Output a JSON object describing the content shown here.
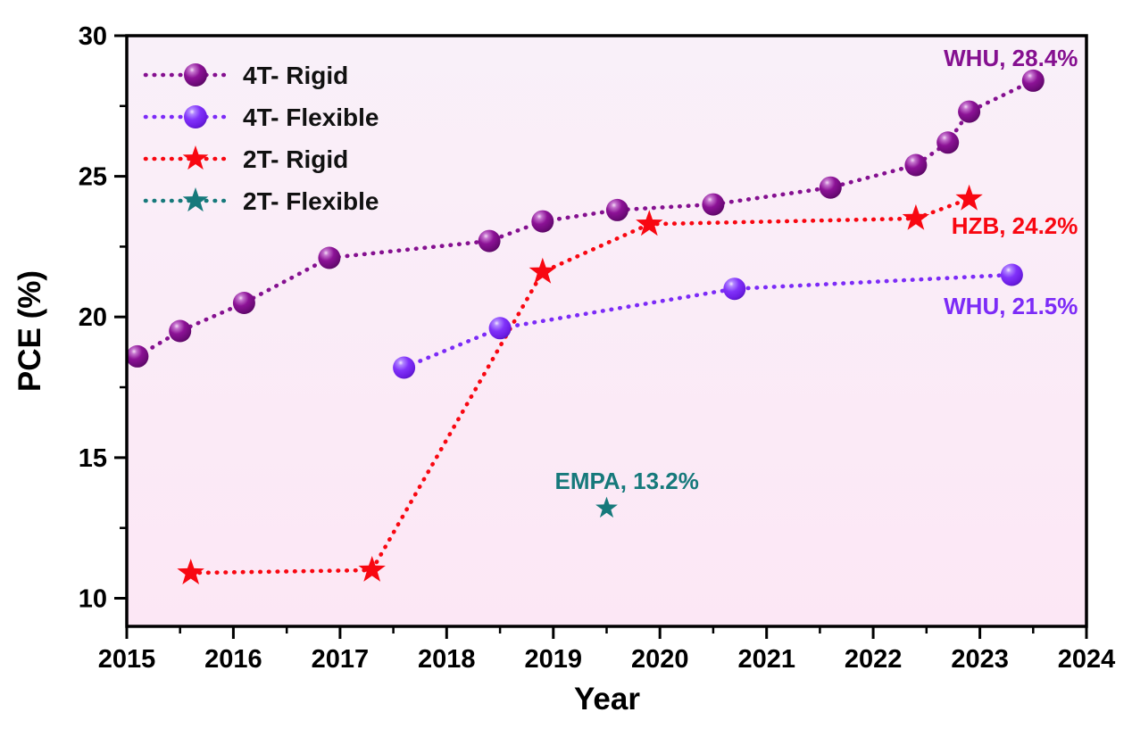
{
  "chart_data": {
    "type": "scatter",
    "title": "",
    "xlabel": "Year",
    "ylabel": "PCE (%)",
    "xlim": [
      2015,
      2024
    ],
    "ylim": [
      9,
      30
    ],
    "x_major_ticks": [
      2015,
      2016,
      2017,
      2018,
      2019,
      2020,
      2021,
      2022,
      2023,
      2024
    ],
    "x_minor_ticks": [
      2015.5,
      2016.5,
      2017.5,
      2018.5,
      2019.5,
      2020.5,
      2021.5,
      2022.5,
      2023.5
    ],
    "y_major_ticks": [
      10,
      15,
      20,
      25,
      30
    ],
    "y_minor_ticks": [
      12.5,
      17.5,
      22.5,
      27.5
    ],
    "grid": false,
    "legend_position": "top-left",
    "colors": {
      "plot_bg_top": "#f9f0f9",
      "plot_bg_bottom": "#fce7f5",
      "outer_bg": "#ffffff",
      "axis": "#000000",
      "legend_text": "#111111"
    },
    "series": [
      {
        "name": "4T- Rigid",
        "marker": "sphere",
        "color": "#851090",
        "marker_size": 12.5,
        "line_style": "dotted",
        "points": [
          [
            2015.1,
            18.6
          ],
          [
            2015.5,
            19.5
          ],
          [
            2016.1,
            20.5
          ],
          [
            2016.9,
            22.1
          ],
          [
            2018.4,
            22.7
          ],
          [
            2018.9,
            23.4
          ],
          [
            2019.6,
            23.8
          ],
          [
            2020.5,
            24.0
          ],
          [
            2021.6,
            24.6
          ],
          [
            2022.4,
            25.4
          ],
          [
            2022.7,
            26.2
          ],
          [
            2022.9,
            27.3
          ],
          [
            2023.5,
            28.4
          ]
        ]
      },
      {
        "name": "4T- Flexible",
        "marker": "sphere",
        "color": "#7c2bf7",
        "marker_size": 12.5,
        "line_style": "dotted",
        "points": [
          [
            2017.6,
            18.2
          ],
          [
            2018.5,
            19.6
          ],
          [
            2020.7,
            21.0
          ],
          [
            2023.3,
            21.5
          ]
        ]
      },
      {
        "name": "2T- Rigid",
        "marker": "star",
        "color": "#f80711",
        "marker_size": 16,
        "line_style": "dotted",
        "points": [
          [
            2015.6,
            10.9
          ],
          [
            2017.3,
            11.0
          ],
          [
            2018.9,
            21.6
          ],
          [
            2019.9,
            23.3
          ],
          [
            2022.4,
            23.5
          ],
          [
            2022.9,
            24.2
          ]
        ]
      },
      {
        "name": "2T- Flexible",
        "marker": "star",
        "color": "#16797b",
        "marker_size": 13,
        "line_style": "dotted",
        "points": [
          [
            2019.5,
            13.2
          ]
        ]
      }
    ],
    "annotations": [
      {
        "text": "WHU, 28.4%",
        "color": "#851090",
        "x": 2023.92,
        "y": 28.92,
        "anchor": "end"
      },
      {
        "text": "HZB, 24.2%",
        "color": "#f80711",
        "x": 2023.92,
        "y": 22.96,
        "anchor": "end"
      },
      {
        "text": "WHU, 21.5%",
        "color": "#7c2bf7",
        "x": 2023.92,
        "y": 20.1,
        "anchor": "end"
      },
      {
        "text": "EMPA, 13.2%",
        "color": "#16797b",
        "x": 2019.69,
        "y": 13.88,
        "anchor": "middle"
      }
    ]
  }
}
